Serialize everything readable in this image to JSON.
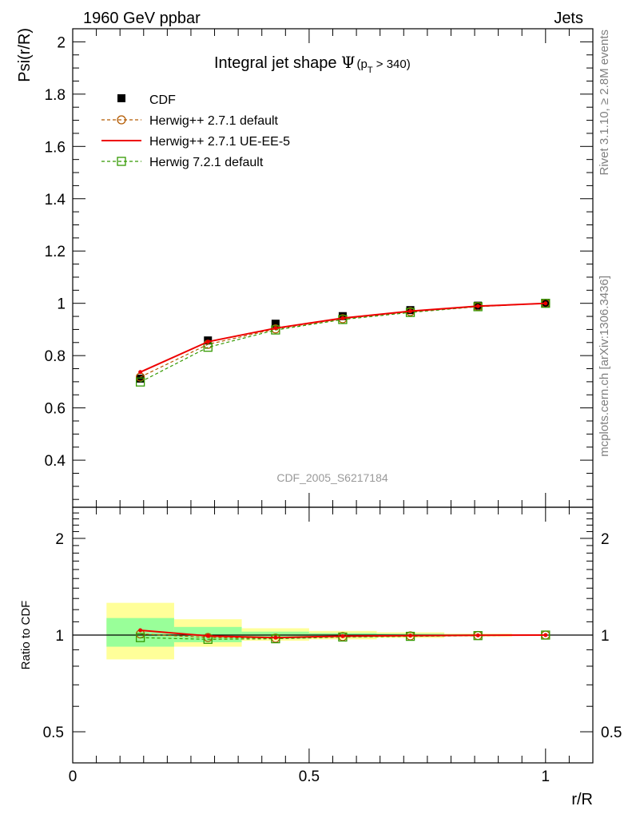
{
  "header": {
    "left": "1960 GeV ppbar",
    "right": "Jets"
  },
  "side_text": {
    "rivet": "Rivet 3.1.10, ≥ 2.8M events",
    "mcplots": "mcplots.cern.ch [arXiv:1306.3436]"
  },
  "colors": {
    "data": "#000000",
    "herwigpp_default": "#b35a00",
    "herwigpp_ueee5": "#ee0000",
    "herwig7": "#339900",
    "band_inner": "#99ff99",
    "band_outer": "#ffff99"
  },
  "chart_data": [
    {
      "type": "line",
      "title": "Integral jet shape",
      "title_symbol": "Ψ",
      "title_cut_prefix": "(p",
      "title_cut_sub": "T",
      "title_cut_suffix": " > 340)",
      "ylabel": "Psi(r/R)",
      "xlabel": "r/R",
      "watermark": "CDF_2005_S6217184",
      "xlim": [
        0,
        1.1
      ],
      "ylim": [
        0.22,
        2.05
      ],
      "yticks": [
        0.4,
        0.6,
        0.8,
        1,
        1.2,
        1.4,
        1.6,
        1.8,
        2
      ],
      "ytick_labels": [
        "0.4",
        "0.6",
        "0.8",
        "1",
        "1.2",
        "1.4",
        "1.6",
        "1.8",
        "2"
      ],
      "legend_placement": "top-left",
      "x": [
        0.143,
        0.286,
        0.429,
        0.571,
        0.714,
        0.857,
        1.0
      ],
      "series": [
        {
          "name": "CDF",
          "style": "data",
          "values": [
            0.712,
            0.858,
            0.922,
            0.951,
            0.974,
            0.991,
            1.0
          ]
        },
        {
          "name": "Herwig++ 2.7.1 default",
          "style": "circle-dashed",
          "values": [
            0.718,
            0.843,
            0.902,
            0.941,
            0.968,
            0.988,
            1.0
          ]
        },
        {
          "name": "Herwig++ 2.7.1 UE-EE-5",
          "style": "solid",
          "values": [
            0.737,
            0.853,
            0.905,
            0.943,
            0.97,
            0.989,
            1.0
          ]
        },
        {
          "name": "Herwig 7.2.1 default",
          "style": "square-dashed",
          "values": [
            0.699,
            0.832,
            0.898,
            0.938,
            0.965,
            0.987,
            1.0
          ]
        }
      ]
    },
    {
      "type": "line",
      "ylabel": "Ratio to CDF",
      "xlabel": "r/R",
      "log_y": true,
      "ylim": [
        0.4,
        2.5
      ],
      "yticks": [
        0.5,
        1,
        2
      ],
      "ytick_labels": [
        "0.5",
        "1",
        "2"
      ],
      "xticks": [
        0,
        0.5,
        1
      ],
      "xtick_labels": [
        "0",
        "0.5",
        "1"
      ],
      "x": [
        0.143,
        0.286,
        0.429,
        0.571,
        0.714,
        0.857,
        1.0
      ],
      "bin_edges": [
        0.0715,
        0.2145,
        0.3575,
        0.5,
        0.643,
        0.786,
        0.929,
        1.0
      ],
      "band_inner": [
        [
          0.92,
          1.13
        ],
        [
          0.95,
          1.06
        ],
        [
          0.975,
          1.025
        ],
        [
          0.985,
          1.015
        ],
        [
          0.99,
          1.01
        ],
        [
          0.995,
          1.005
        ],
        [
          0.998,
          1.002
        ]
      ],
      "band_outer": [
        [
          0.84,
          1.26
        ],
        [
          0.92,
          1.12
        ],
        [
          0.96,
          1.05
        ],
        [
          0.97,
          1.03
        ],
        [
          0.98,
          1.02
        ],
        [
          0.99,
          1.01
        ],
        [
          0.995,
          1.005
        ]
      ],
      "series": [
        {
          "name": "Herwig++ 2.7.1 default",
          "style": "circle-dashed",
          "values": [
            1.008,
            0.983,
            0.978,
            0.989,
            0.994,
            0.997,
            1.0
          ]
        },
        {
          "name": "Herwig++ 2.7.1 UE-EE-5",
          "style": "solid",
          "values": [
            1.035,
            0.994,
            0.982,
            0.992,
            0.996,
            0.998,
            1.0
          ]
        },
        {
          "name": "Herwig 7.2.1 default",
          "style": "square-dashed",
          "values": [
            0.982,
            0.97,
            0.974,
            0.986,
            0.991,
            0.996,
            1.0
          ]
        }
      ]
    }
  ]
}
